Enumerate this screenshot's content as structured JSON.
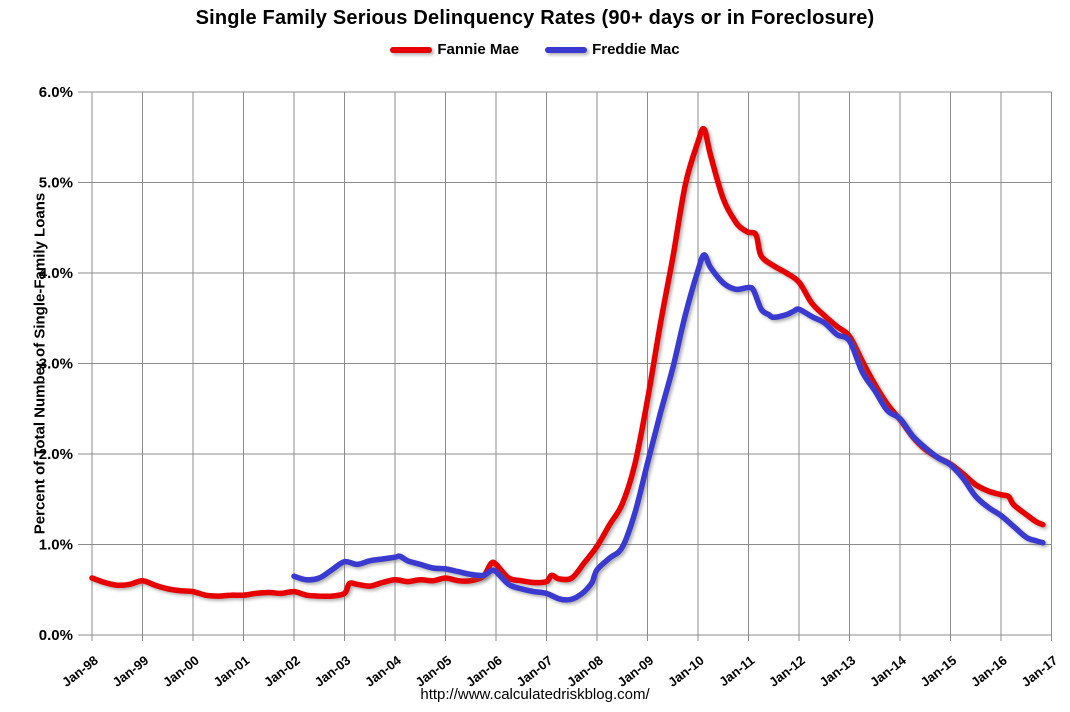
{
  "page": {
    "title": "Single Family Serious Delinquency Rates (90+ days or in Foreclosure)",
    "footer_url": "http://www.calculatedriskblog.com/"
  },
  "chart_data": {
    "type": "line",
    "title": "Single Family Serious Delinquency Rates (90+ days or in Foreclosure)",
    "xlabel": "",
    "ylabel": "Percent of Total Number of Single-Family Loans",
    "xlim": [
      1998,
      2017
    ],
    "ylim": [
      0,
      6
    ],
    "grid": true,
    "legend_position": "top-center",
    "background_color": "#ffffff",
    "gridline_color": "#8c8c8c",
    "text_color": "#000000",
    "x_tick_labels": [
      "Jan-98",
      "Jan-99",
      "Jan-00",
      "Jan-01",
      "Jan-02",
      "Jan-03",
      "Jan-04",
      "Jan-05",
      "Jan-06",
      "Jan-07",
      "Jan-08",
      "Jan-09",
      "Jan-10",
      "Jan-11",
      "Jan-12",
      "Jan-13",
      "Jan-14",
      "Jan-15",
      "Jan-16",
      "Jan-17"
    ],
    "y_tick_labels": [
      "0.0%",
      "1.0%",
      "2.0%",
      "3.0%",
      "4.0%",
      "5.0%",
      "6.0%"
    ],
    "y_tick_values": [
      0,
      1,
      2,
      3,
      4,
      5,
      6
    ],
    "series": [
      {
        "name": "Fannie Mae",
        "color": "#e60000",
        "points": [
          [
            1998.0,
            0.63
          ],
          [
            1998.25,
            0.58
          ],
          [
            1998.5,
            0.55
          ],
          [
            1998.75,
            0.56
          ],
          [
            1999.0,
            0.6
          ],
          [
            1999.25,
            0.55
          ],
          [
            1999.5,
            0.51
          ],
          [
            1999.75,
            0.49
          ],
          [
            2000.0,
            0.48
          ],
          [
            2000.25,
            0.44
          ],
          [
            2000.5,
            0.43
          ],
          [
            2000.75,
            0.44
          ],
          [
            2001.0,
            0.44
          ],
          [
            2001.25,
            0.46
          ],
          [
            2001.5,
            0.47
          ],
          [
            2001.75,
            0.46
          ],
          [
            2002.0,
            0.48
          ],
          [
            2002.25,
            0.44
          ],
          [
            2002.5,
            0.43
          ],
          [
            2002.75,
            0.43
          ],
          [
            2003.0,
            0.46
          ],
          [
            2003.1,
            0.57
          ],
          [
            2003.25,
            0.56
          ],
          [
            2003.5,
            0.54
          ],
          [
            2003.75,
            0.58
          ],
          [
            2004.0,
            0.61
          ],
          [
            2004.25,
            0.59
          ],
          [
            2004.5,
            0.61
          ],
          [
            2004.75,
            0.6
          ],
          [
            2005.0,
            0.63
          ],
          [
            2005.25,
            0.6
          ],
          [
            2005.5,
            0.6
          ],
          [
            2005.75,
            0.65
          ],
          [
            2005.9,
            0.79
          ],
          [
            2006.0,
            0.78
          ],
          [
            2006.25,
            0.63
          ],
          [
            2006.5,
            0.6
          ],
          [
            2006.75,
            0.58
          ],
          [
            2007.0,
            0.59
          ],
          [
            2007.1,
            0.66
          ],
          [
            2007.25,
            0.62
          ],
          [
            2007.5,
            0.63
          ],
          [
            2007.75,
            0.8
          ],
          [
            2008.0,
            0.98
          ],
          [
            2008.25,
            1.22
          ],
          [
            2008.5,
            1.45
          ],
          [
            2008.75,
            1.89
          ],
          [
            2009.0,
            2.6
          ],
          [
            2009.25,
            3.42
          ],
          [
            2009.5,
            4.17
          ],
          [
            2009.75,
            4.98
          ],
          [
            2010.0,
            5.45
          ],
          [
            2010.12,
            5.59
          ],
          [
            2010.25,
            5.3
          ],
          [
            2010.5,
            4.82
          ],
          [
            2010.75,
            4.56
          ],
          [
            2010.9,
            4.48
          ],
          [
            2011.0,
            4.45
          ],
          [
            2011.15,
            4.42
          ],
          [
            2011.25,
            4.19
          ],
          [
            2011.5,
            4.08
          ],
          [
            2011.75,
            4.0
          ],
          [
            2012.0,
            3.9
          ],
          [
            2012.25,
            3.67
          ],
          [
            2012.5,
            3.53
          ],
          [
            2012.75,
            3.41
          ],
          [
            2013.0,
            3.3
          ],
          [
            2013.25,
            3.03
          ],
          [
            2013.5,
            2.77
          ],
          [
            2013.75,
            2.55
          ],
          [
            2014.0,
            2.38
          ],
          [
            2014.25,
            2.19
          ],
          [
            2014.5,
            2.05
          ],
          [
            2014.75,
            1.96
          ],
          [
            2015.0,
            1.89
          ],
          [
            2015.25,
            1.78
          ],
          [
            2015.5,
            1.66
          ],
          [
            2015.75,
            1.59
          ],
          [
            2016.0,
            1.55
          ],
          [
            2016.15,
            1.53
          ],
          [
            2016.25,
            1.44
          ],
          [
            2016.5,
            1.33
          ],
          [
            2016.7,
            1.25
          ],
          [
            2016.83,
            1.22
          ]
        ]
      },
      {
        "name": "Freddie Mac",
        "color": "#3a3ad0",
        "points": [
          [
            2002.0,
            0.65
          ],
          [
            2002.25,
            0.61
          ],
          [
            2002.5,
            0.63
          ],
          [
            2002.75,
            0.72
          ],
          [
            2003.0,
            0.81
          ],
          [
            2003.25,
            0.78
          ],
          [
            2003.5,
            0.82
          ],
          [
            2003.75,
            0.84
          ],
          [
            2004.0,
            0.86
          ],
          [
            2004.1,
            0.87
          ],
          [
            2004.25,
            0.82
          ],
          [
            2004.5,
            0.78
          ],
          [
            2004.75,
            0.74
          ],
          [
            2005.0,
            0.73
          ],
          [
            2005.25,
            0.7
          ],
          [
            2005.5,
            0.67
          ],
          [
            2005.75,
            0.66
          ],
          [
            2005.9,
            0.71
          ],
          [
            2006.0,
            0.7
          ],
          [
            2006.25,
            0.56
          ],
          [
            2006.5,
            0.51
          ],
          [
            2006.75,
            0.48
          ],
          [
            2007.0,
            0.46
          ],
          [
            2007.25,
            0.4
          ],
          [
            2007.45,
            0.39
          ],
          [
            2007.6,
            0.42
          ],
          [
            2007.75,
            0.48
          ],
          [
            2007.9,
            0.58
          ],
          [
            2008.0,
            0.72
          ],
          [
            2008.25,
            0.85
          ],
          [
            2008.5,
            0.97
          ],
          [
            2008.75,
            1.35
          ],
          [
            2009.0,
            1.9
          ],
          [
            2009.25,
            2.44
          ],
          [
            2009.5,
            2.95
          ],
          [
            2009.75,
            3.54
          ],
          [
            2010.0,
            4.03
          ],
          [
            2010.12,
            4.2
          ],
          [
            2010.25,
            4.06
          ],
          [
            2010.5,
            3.89
          ],
          [
            2010.75,
            3.82
          ],
          [
            2011.0,
            3.84
          ],
          [
            2011.1,
            3.81
          ],
          [
            2011.25,
            3.6
          ],
          [
            2011.4,
            3.54
          ],
          [
            2011.5,
            3.51
          ],
          [
            2011.75,
            3.54
          ],
          [
            2011.9,
            3.58
          ],
          [
            2012.0,
            3.6
          ],
          [
            2012.25,
            3.52
          ],
          [
            2012.5,
            3.45
          ],
          [
            2012.75,
            3.32
          ],
          [
            2013.0,
            3.25
          ],
          [
            2013.25,
            2.91
          ],
          [
            2013.5,
            2.7
          ],
          [
            2013.75,
            2.48
          ],
          [
            2014.0,
            2.39
          ],
          [
            2014.25,
            2.2
          ],
          [
            2014.5,
            2.07
          ],
          [
            2014.75,
            1.96
          ],
          [
            2015.0,
            1.88
          ],
          [
            2015.25,
            1.73
          ],
          [
            2015.5,
            1.53
          ],
          [
            2015.75,
            1.41
          ],
          [
            2016.0,
            1.32
          ],
          [
            2016.25,
            1.2
          ],
          [
            2016.5,
            1.08
          ],
          [
            2016.7,
            1.04
          ],
          [
            2016.83,
            1.02
          ]
        ]
      }
    ]
  }
}
